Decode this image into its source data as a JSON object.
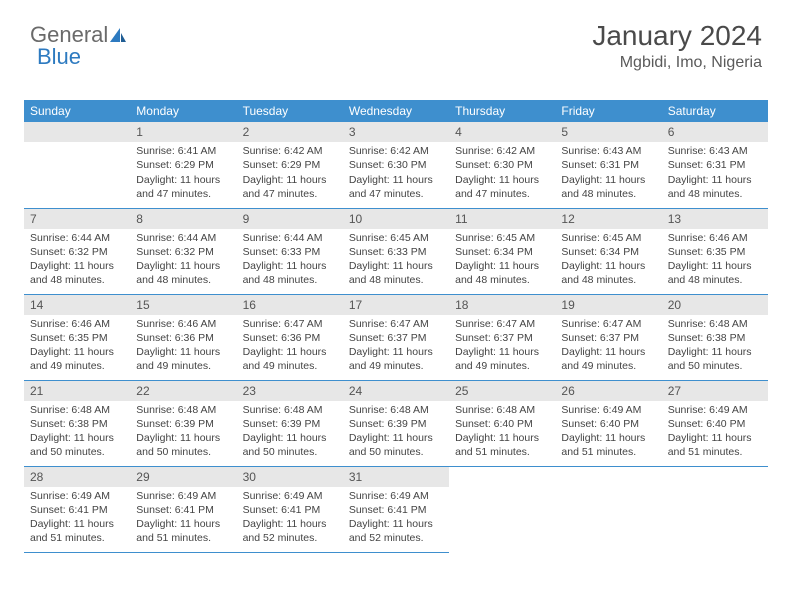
{
  "brand": {
    "part1": "General",
    "part2": "Blue"
  },
  "header": {
    "title": "January 2024",
    "location": "Mgbidi, Imo, Nigeria"
  },
  "colors": {
    "accent": "#3e8fce",
    "daynum_bg": "#e7e7e7",
    "text": "#444444",
    "title": "#4a4a4a"
  },
  "weekdays": [
    "Sunday",
    "Monday",
    "Tuesday",
    "Wednesday",
    "Thursday",
    "Friday",
    "Saturday"
  ],
  "weeks": [
    [
      {
        "n": "",
        "sr": "",
        "ss": "",
        "dl": ""
      },
      {
        "n": "1",
        "sr": "Sunrise: 6:41 AM",
        "ss": "Sunset: 6:29 PM",
        "dl": "Daylight: 11 hours and 47 minutes."
      },
      {
        "n": "2",
        "sr": "Sunrise: 6:42 AM",
        "ss": "Sunset: 6:29 PM",
        "dl": "Daylight: 11 hours and 47 minutes."
      },
      {
        "n": "3",
        "sr": "Sunrise: 6:42 AM",
        "ss": "Sunset: 6:30 PM",
        "dl": "Daylight: 11 hours and 47 minutes."
      },
      {
        "n": "4",
        "sr": "Sunrise: 6:42 AM",
        "ss": "Sunset: 6:30 PM",
        "dl": "Daylight: 11 hours and 47 minutes."
      },
      {
        "n": "5",
        "sr": "Sunrise: 6:43 AM",
        "ss": "Sunset: 6:31 PM",
        "dl": "Daylight: 11 hours and 48 minutes."
      },
      {
        "n": "6",
        "sr": "Sunrise: 6:43 AM",
        "ss": "Sunset: 6:31 PM",
        "dl": "Daylight: 11 hours and 48 minutes."
      }
    ],
    [
      {
        "n": "7",
        "sr": "Sunrise: 6:44 AM",
        "ss": "Sunset: 6:32 PM",
        "dl": "Daylight: 11 hours and 48 minutes."
      },
      {
        "n": "8",
        "sr": "Sunrise: 6:44 AM",
        "ss": "Sunset: 6:32 PM",
        "dl": "Daylight: 11 hours and 48 minutes."
      },
      {
        "n": "9",
        "sr": "Sunrise: 6:44 AM",
        "ss": "Sunset: 6:33 PM",
        "dl": "Daylight: 11 hours and 48 minutes."
      },
      {
        "n": "10",
        "sr": "Sunrise: 6:45 AM",
        "ss": "Sunset: 6:33 PM",
        "dl": "Daylight: 11 hours and 48 minutes."
      },
      {
        "n": "11",
        "sr": "Sunrise: 6:45 AM",
        "ss": "Sunset: 6:34 PM",
        "dl": "Daylight: 11 hours and 48 minutes."
      },
      {
        "n": "12",
        "sr": "Sunrise: 6:45 AM",
        "ss": "Sunset: 6:34 PM",
        "dl": "Daylight: 11 hours and 48 minutes."
      },
      {
        "n": "13",
        "sr": "Sunrise: 6:46 AM",
        "ss": "Sunset: 6:35 PM",
        "dl": "Daylight: 11 hours and 48 minutes."
      }
    ],
    [
      {
        "n": "14",
        "sr": "Sunrise: 6:46 AM",
        "ss": "Sunset: 6:35 PM",
        "dl": "Daylight: 11 hours and 49 minutes."
      },
      {
        "n": "15",
        "sr": "Sunrise: 6:46 AM",
        "ss": "Sunset: 6:36 PM",
        "dl": "Daylight: 11 hours and 49 minutes."
      },
      {
        "n": "16",
        "sr": "Sunrise: 6:47 AM",
        "ss": "Sunset: 6:36 PM",
        "dl": "Daylight: 11 hours and 49 minutes."
      },
      {
        "n": "17",
        "sr": "Sunrise: 6:47 AM",
        "ss": "Sunset: 6:37 PM",
        "dl": "Daylight: 11 hours and 49 minutes."
      },
      {
        "n": "18",
        "sr": "Sunrise: 6:47 AM",
        "ss": "Sunset: 6:37 PM",
        "dl": "Daylight: 11 hours and 49 minutes."
      },
      {
        "n": "19",
        "sr": "Sunrise: 6:47 AM",
        "ss": "Sunset: 6:37 PM",
        "dl": "Daylight: 11 hours and 49 minutes."
      },
      {
        "n": "20",
        "sr": "Sunrise: 6:48 AM",
        "ss": "Sunset: 6:38 PM",
        "dl": "Daylight: 11 hours and 50 minutes."
      }
    ],
    [
      {
        "n": "21",
        "sr": "Sunrise: 6:48 AM",
        "ss": "Sunset: 6:38 PM",
        "dl": "Daylight: 11 hours and 50 minutes."
      },
      {
        "n": "22",
        "sr": "Sunrise: 6:48 AM",
        "ss": "Sunset: 6:39 PM",
        "dl": "Daylight: 11 hours and 50 minutes."
      },
      {
        "n": "23",
        "sr": "Sunrise: 6:48 AM",
        "ss": "Sunset: 6:39 PM",
        "dl": "Daylight: 11 hours and 50 minutes."
      },
      {
        "n": "24",
        "sr": "Sunrise: 6:48 AM",
        "ss": "Sunset: 6:39 PM",
        "dl": "Daylight: 11 hours and 50 minutes."
      },
      {
        "n": "25",
        "sr": "Sunrise: 6:48 AM",
        "ss": "Sunset: 6:40 PM",
        "dl": "Daylight: 11 hours and 51 minutes."
      },
      {
        "n": "26",
        "sr": "Sunrise: 6:49 AM",
        "ss": "Sunset: 6:40 PM",
        "dl": "Daylight: 11 hours and 51 minutes."
      },
      {
        "n": "27",
        "sr": "Sunrise: 6:49 AM",
        "ss": "Sunset: 6:40 PM",
        "dl": "Daylight: 11 hours and 51 minutes."
      }
    ],
    [
      {
        "n": "28",
        "sr": "Sunrise: 6:49 AM",
        "ss": "Sunset: 6:41 PM",
        "dl": "Daylight: 11 hours and 51 minutes."
      },
      {
        "n": "29",
        "sr": "Sunrise: 6:49 AM",
        "ss": "Sunset: 6:41 PM",
        "dl": "Daylight: 11 hours and 51 minutes."
      },
      {
        "n": "30",
        "sr": "Sunrise: 6:49 AM",
        "ss": "Sunset: 6:41 PM",
        "dl": "Daylight: 11 hours and 52 minutes."
      },
      {
        "n": "31",
        "sr": "Sunrise: 6:49 AM",
        "ss": "Sunset: 6:41 PM",
        "dl": "Daylight: 11 hours and 52 minutes."
      },
      {
        "n": "",
        "sr": "",
        "ss": "",
        "dl": ""
      },
      {
        "n": "",
        "sr": "",
        "ss": "",
        "dl": ""
      },
      {
        "n": "",
        "sr": "",
        "ss": "",
        "dl": ""
      }
    ]
  ]
}
